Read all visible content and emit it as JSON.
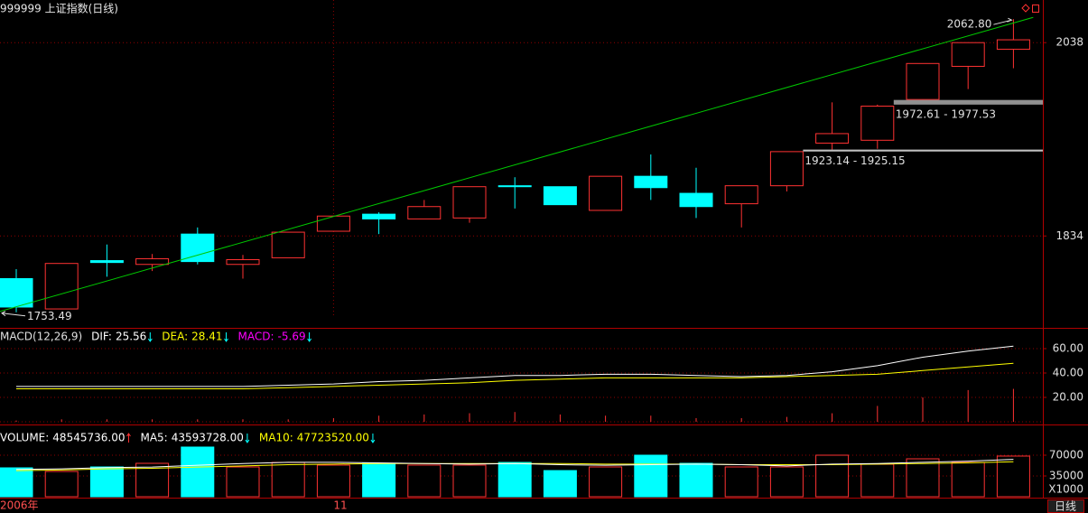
{
  "header": {
    "title": "999999 上证指数(日线)",
    "tab": "日线"
  },
  "chart_data": [
    {
      "type": "candlestick",
      "categories": [
        "2006年",
        null,
        null,
        null,
        null,
        null,
        null,
        "11",
        null,
        null,
        null,
        null,
        null,
        null,
        null,
        null,
        null,
        null,
        null,
        null,
        null,
        null,
        null
      ],
      "open": [
        1789,
        1757,
        1808,
        1804,
        1836,
        1804,
        1811,
        1839,
        1857,
        1852,
        1853,
        1887,
        1886,
        1861,
        1897,
        1879,
        1868,
        1887,
        1932,
        1935,
        1978,
        2013,
        2031
      ],
      "close": [
        1759,
        1805,
        1806,
        1810,
        1807,
        1809,
        1838,
        1855,
        1852,
        1865,
        1886,
        1886,
        1867,
        1897,
        1885,
        1865,
        1887,
        1923,
        1942,
        1971,
        2016,
        2038,
        2041
      ],
      "high": [
        1799,
        1805,
        1825,
        1815,
        1843,
        1814,
        1838,
        1855,
        1859,
        1872,
        1886,
        1896,
        1886,
        1897,
        1920,
        1906,
        1887,
        1923.14,
        1975,
        1972.61,
        2016,
        2038,
        2062.8
      ],
      "low": [
        1753.49,
        1757,
        1791,
        1797,
        1804,
        1789,
        1811,
        1839,
        1836,
        1852,
        1848,
        1863,
        1867,
        1861,
        1872,
        1853,
        1843,
        1881,
        1925.15,
        1926,
        1977.53,
        1989,
        2011
      ],
      "up_color": "#ff3232",
      "down_color": "#00ffff",
      "trendline_color": "#00c800",
      "ylim": [
        1738,
        2083
      ],
      "yticks": [
        1834,
        2038
      ],
      "annotations": [
        {
          "value": 2062.8,
          "label": "2062.80"
        },
        {
          "value": 1753.49,
          "label": "1753.49"
        }
      ],
      "gaps": [
        {
          "low": 1972.61,
          "high": 1977.53,
          "label": "1972.61 - 1977.53",
          "color": "#909090"
        },
        {
          "low": 1923.14,
          "high": 1925.15,
          "label": "1923.14 - 1925.15",
          "color": "#c0c0c0"
        }
      ]
    },
    {
      "type": "macd",
      "legend": [
        {
          "label": "MACD(12,26,9)",
          "color": "#e0e0e0"
        },
        {
          "label": "DIF:",
          "value": 25.56,
          "color": "#ffffff",
          "arrow": "down"
        },
        {
          "label": "DEA:",
          "value": 28.41,
          "color": "#ffff00",
          "arrow": "down"
        },
        {
          "label": "MACD:",
          "value": -5.69,
          "color": "#ff00ff",
          "arrow": "down"
        }
      ],
      "series": [
        {
          "color": "#ffffff",
          "values": [
            29,
            29,
            29,
            29,
            29,
            29,
            30,
            31,
            33,
            34,
            36,
            38,
            38,
            39,
            39,
            38,
            37,
            38,
            41,
            46,
            53,
            58,
            62
          ]
        },
        {
          "color": "#ffff00",
          "values": [
            27,
            27,
            27,
            27,
            27,
            27,
            28,
            29,
            30,
            31,
            32,
            34,
            35,
            36,
            36,
            36,
            36,
            37,
            38,
            39,
            42,
            45,
            48
          ]
        },
        {
          "color": "#ff3232",
          "values": [
            1,
            2,
            2,
            2,
            2,
            2,
            2,
            3,
            5,
            6,
            7,
            8,
            6,
            5,
            5,
            3,
            3,
            4,
            7,
            13,
            20,
            26,
            27
          ]
        }
      ],
      "ylim": [
        0,
        72
      ],
      "yticks": [
        {
          "value": 20,
          "label": "20.00"
        },
        {
          "value": 40,
          "label": "40.00"
        },
        {
          "value": 60,
          "label": "60.00"
        }
      ]
    },
    {
      "type": "volume",
      "legend": [
        {
          "label": "VOLUME:",
          "value": {
            "value": 48545736,
            "label": "48545736.00"
          },
          "color": "#ffffff",
          "arrow": "up"
        },
        {
          "label": "MA5:",
          "value": {
            "value": 43593728,
            "label": "43593728.00"
          },
          "color": "#ffffff",
          "arrow": "down"
        },
        {
          "label": "MA10:",
          "value": {
            "value": 47723520,
            "label": "47723520.00"
          },
          "color": "#ffff00",
          "arrow": "down"
        }
      ],
      "series": [
        {
          "values": [
            48700,
            42600,
            50200,
            56300,
            83700,
            50200,
            57800,
            53300,
            56300,
            53300,
            53300,
            57800,
            44100,
            50200,
            70000,
            56300,
            50200,
            50200,
            70000,
            54800,
            63900,
            57800,
            68500
          ]
        },
        {
          "color": "#ffffff",
          "values": [
            46000,
            47000,
            49000,
            50000,
            53000,
            56000,
            58000,
            58000,
            57000,
            56000,
            55000,
            56000,
            54000,
            53000,
            54000,
            55000,
            54000,
            52000,
            55000,
            56000,
            58000,
            60000,
            63000
          ]
        },
        {
          "color": "#ffff00",
          "values": [
            44000,
            45000,
            47000,
            48000,
            50000,
            52000,
            54000,
            55000,
            56000,
            56000,
            56000,
            56000,
            56000,
            55000,
            55000,
            55000,
            54000,
            54000,
            54000,
            55000,
            56000,
            57000,
            59000
          ]
        }
      ],
      "ylim": [
        0,
        110000
      ],
      "yticks": [
        35000,
        70000
      ],
      "unit": "X1000"
    }
  ]
}
